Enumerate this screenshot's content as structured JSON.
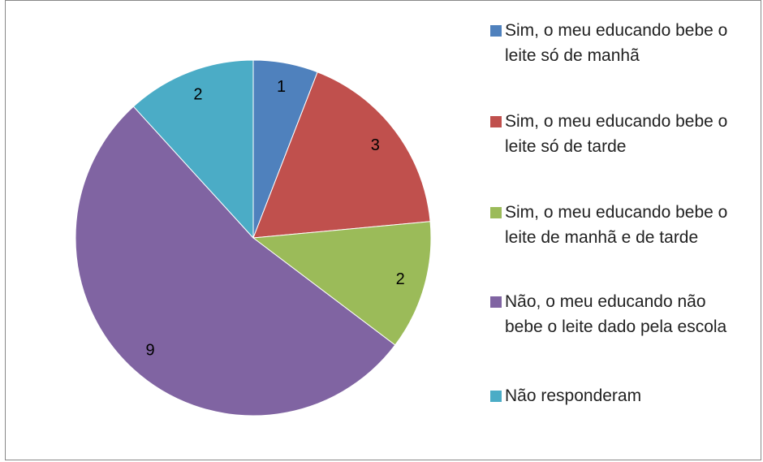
{
  "chart_data": {
    "type": "pie",
    "categories": [
      "Sim, o meu educando bebe o leite só de manhã",
      "Sim, o meu educando bebe o leite só de tarde",
      "Sim, o meu educando bebe o leite de manhã e de tarde",
      "Não, o meu educando não bebe o leite dado pela escola",
      "Não responderam"
    ],
    "values": [
      1,
      3,
      2,
      9,
      2
    ],
    "colors": [
      "#4f81bd",
      "#c0504d",
      "#9bbb59",
      "#8064a2",
      "#4bacc6"
    ],
    "legend": "right"
  }
}
